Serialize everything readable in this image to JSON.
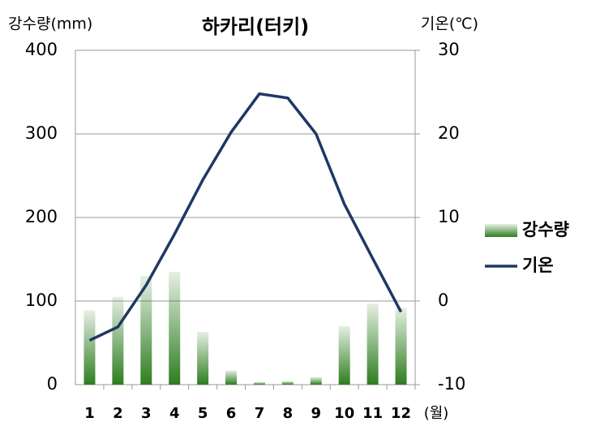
{
  "chart_data": {
    "type": "bar-line",
    "title": "하카리(터키)",
    "y_label": "강수량(mm)",
    "y2_label": "기온(℃)",
    "x_unit": "(월)",
    "categories": [
      "1",
      "2",
      "3",
      "4",
      "5",
      "6",
      "7",
      "8",
      "9",
      "10",
      "11",
      "12"
    ],
    "series": [
      {
        "name": "강수량",
        "type": "bar",
        "color": "#2e7d1f",
        "values": [
          89,
          105,
          130,
          135,
          63,
          17,
          3,
          4,
          9,
          70,
          97,
          92
        ]
      },
      {
        "name": "기온",
        "type": "line",
        "axis": "y2",
        "color": "#1f3864",
        "values": [
          -4.7,
          -3.1,
          1.9,
          8.0,
          14.5,
          20.2,
          24.8,
          24.3,
          20.0,
          11.6,
          5.1,
          -1.3
        ]
      }
    ],
    "ylim": [
      0,
      400
    ],
    "yticks": [
      0,
      100,
      200,
      300,
      400
    ],
    "y2lim": [
      -10,
      30
    ],
    "y2ticks": [
      -10,
      0,
      10,
      20,
      30
    ],
    "grid": true,
    "legend": "right"
  }
}
